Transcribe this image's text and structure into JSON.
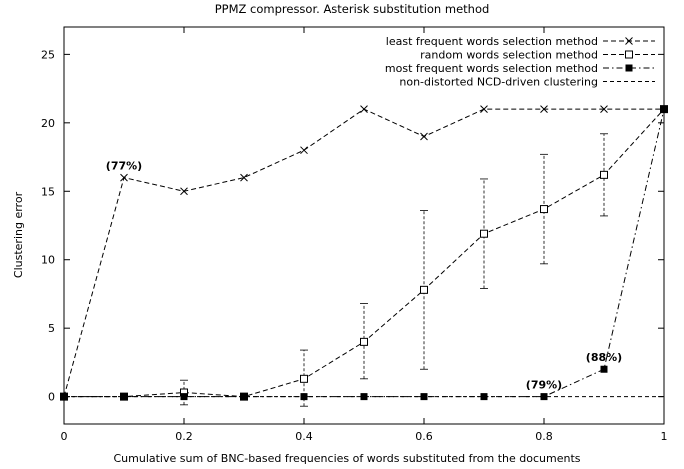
{
  "chart_data": {
    "type": "line",
    "title": "PPMZ compressor. Asterisk substitution method",
    "xlabel": "Cumulative sum of BNC-based frequencies of words substituted from the documents",
    "ylabel": "Clustering error",
    "xlim": [
      0,
      1
    ],
    "ylim": [
      -2,
      27
    ],
    "x_ticks": [
      0,
      0.2,
      0.4,
      0.6,
      0.8,
      1
    ],
    "x_tick_labels": [
      "0",
      "0.2",
      "0.4",
      "0.6",
      "0.8",
      "1"
    ],
    "y_ticks": [
      0,
      5,
      10,
      15,
      20,
      25
    ],
    "y_tick_labels": [
      "0",
      "5",
      "10",
      "15",
      "20",
      "25"
    ],
    "grid": false,
    "legend_position": "top-right",
    "series": [
      {
        "name": "least frequent words selection method",
        "marker": "x",
        "dash": "dashed",
        "x": [
          0,
          0.1,
          0.2,
          0.3,
          0.4,
          0.5,
          0.6,
          0.7,
          0.8,
          0.9,
          1.0
        ],
        "y": [
          0,
          16,
          15,
          16,
          18,
          21,
          19,
          21,
          21,
          21,
          21
        ]
      },
      {
        "name": "random words selection method",
        "marker": "open-square",
        "dash": "dashed",
        "x": [
          0,
          0.1,
          0.2,
          0.3,
          0.4,
          0.5,
          0.6,
          0.7,
          0.8,
          0.9,
          1.0
        ],
        "y": [
          0,
          0,
          0.3,
          0,
          1.3,
          4.0,
          7.8,
          11.9,
          13.7,
          16.2,
          21
        ],
        "err_low": [
          0,
          0,
          -0.6,
          0,
          -0.7,
          1.3,
          2.0,
          7.9,
          9.7,
          13.2,
          21
        ],
        "err_high": [
          0,
          0,
          1.2,
          0,
          3.4,
          6.8,
          13.6,
          15.9,
          17.7,
          19.2,
          21
        ]
      },
      {
        "name": "most frequent words selection method",
        "marker": "filled-square",
        "dash": "dashdot",
        "x": [
          0,
          0.1,
          0.2,
          0.3,
          0.4,
          0.5,
          0.6,
          0.7,
          0.8,
          0.9,
          1.0
        ],
        "y": [
          0,
          0,
          0,
          0,
          0,
          0,
          0,
          0,
          0,
          2,
          21
        ]
      },
      {
        "name": "non-distorted NCD-driven clustering",
        "marker": "none",
        "dash": "dashed-fine",
        "x": [
          0,
          1
        ],
        "y": [
          0,
          0
        ]
      }
    ],
    "annotations": [
      {
        "text": "(77%)",
        "x": 0.1,
        "y": 16
      },
      {
        "text": "(79%)",
        "x": 0.8,
        "y": 0
      },
      {
        "text": "(88%)",
        "x": 0.9,
        "y": 2
      }
    ]
  }
}
